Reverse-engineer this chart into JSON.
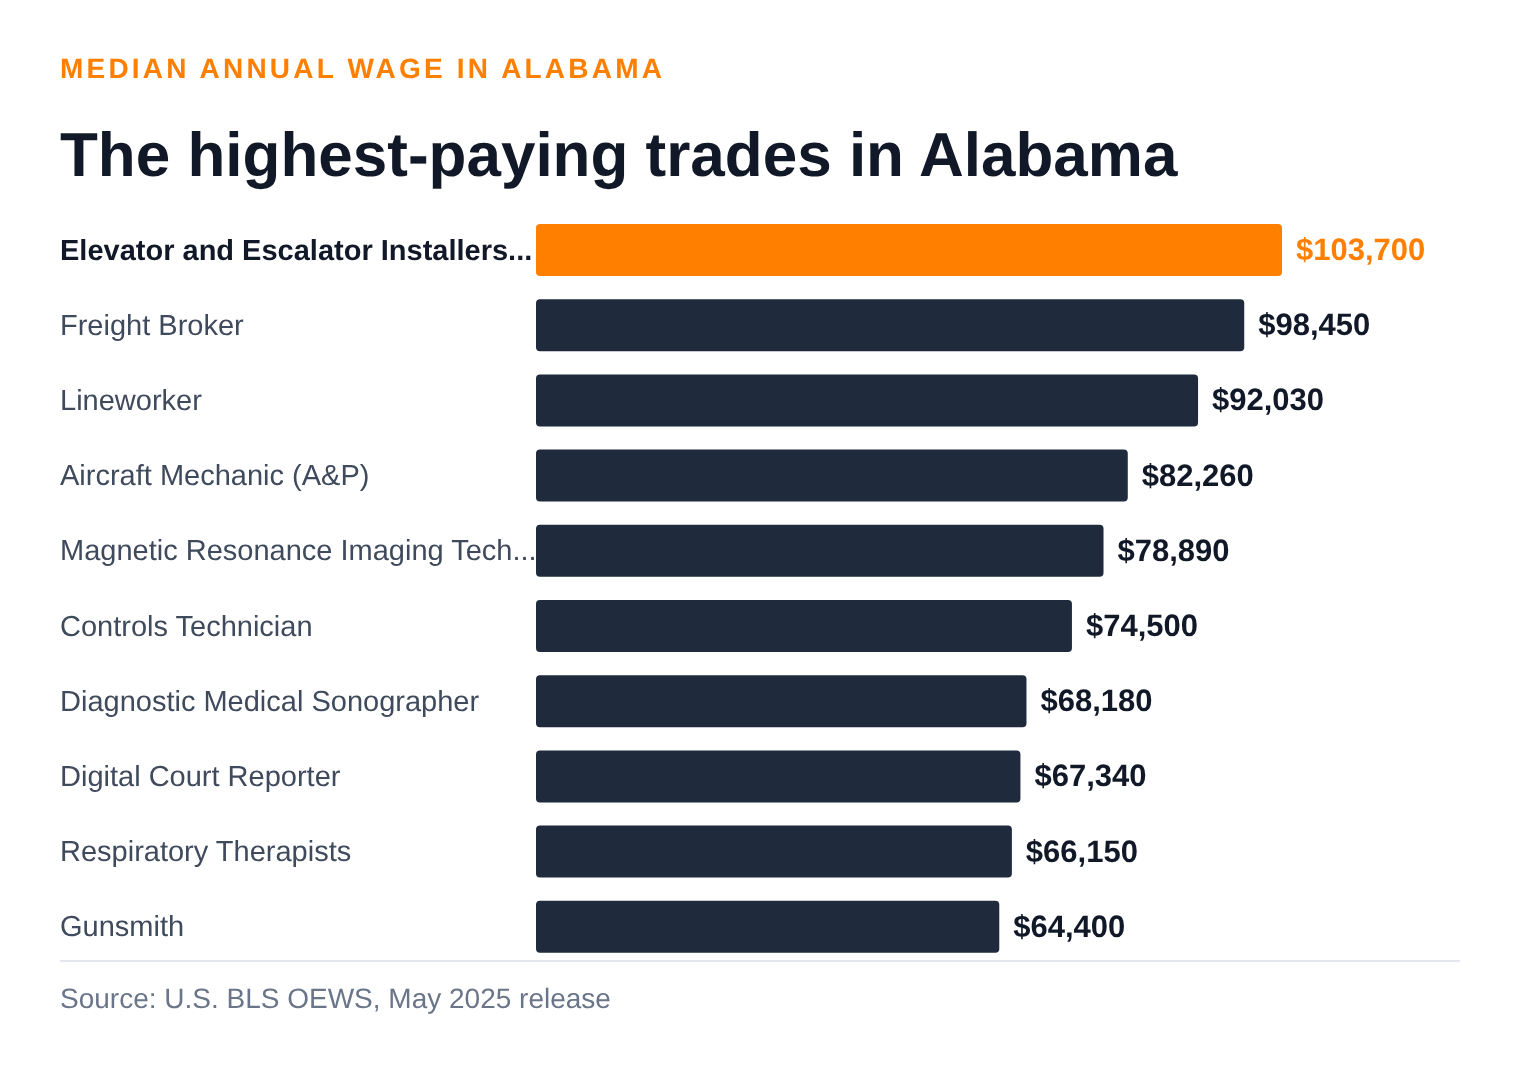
{
  "chart_data": {
    "type": "bar",
    "orientation": "horizontal",
    "subtitle": "MEDIAN ANNUAL WAGE IN ALABAMA",
    "title": "The highest-paying trades in Alabama",
    "categories": [
      "Elevator and Escalator Installers...",
      "Freight Broker",
      "Lineworker",
      "Aircraft Mechanic (A&P)",
      "Magnetic Resonance Imaging Tech...",
      "Controls Technician",
      "Diagnostic Medical Sonographer",
      "Digital Court Reporter",
      "Respiratory Therapists",
      "Gunsmith"
    ],
    "values": [
      103700,
      98450,
      92030,
      82260,
      78890,
      74500,
      68180,
      67340,
      66150,
      64400
    ],
    "colors": [
      "#ff7f00",
      "#1f2a3d",
      "#1f2a3d",
      "#1f2a3d",
      "#1f2a3d",
      "#1f2a3d",
      "#1f2a3d",
      "#1f2a3d",
      "#1f2a3d",
      "#1f2a3d"
    ],
    "value_labels": [
      "$103,700",
      "$98,450",
      "$92,030",
      "$82,260",
      "$78,890",
      "$74,500",
      "$68,180",
      "$67,340",
      "$66,150",
      "$64,400"
    ],
    "grid": false,
    "legend": false,
    "annotations": [
      "Source: U.S. BLS OEWS, May 2025 release"
    ]
  }
}
